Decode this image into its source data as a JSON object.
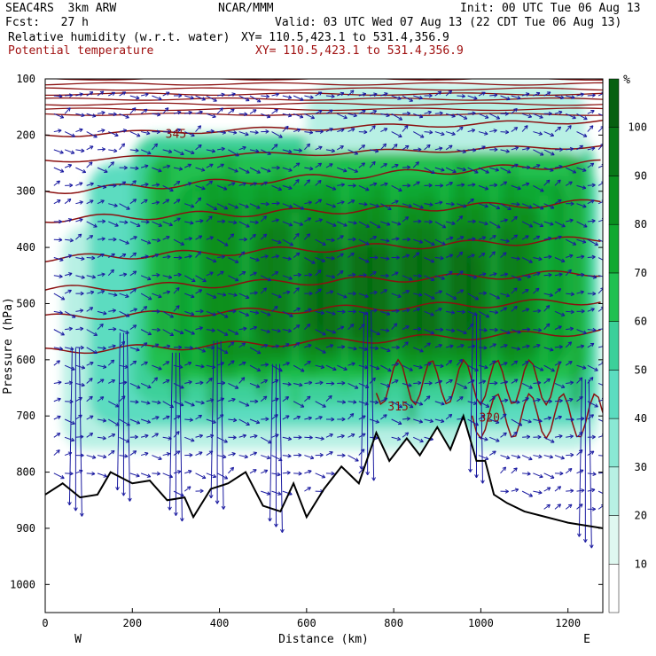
{
  "header": {
    "model": "SEAC4RS  3km ARW",
    "org": "NCAR/MMM",
    "init": "Init: 00 UTC Tue 06 Aug 13",
    "fcst": "Fcst:   27 h",
    "valid": "Valid: 03 UTC Wed 07 Aug 13 (22 CDT Tue 06 Aug 13)",
    "field1": "Relative humidity (w.r.t. water)",
    "xy1": "XY= 110.5,423.1 to 531.4,356.9",
    "field2": "Potential temperature",
    "xy2": "XY= 110.5,423.1 to 531.4,356.9"
  },
  "colors": {
    "rh_shades": [
      "#ffffff",
      "#dff8f0",
      "#b8f0e4",
      "#8ae8d4",
      "#5cdcc0",
      "#3cd09a",
      "#20c050",
      "#10a830",
      "#0a9020",
      "#087818",
      "#066010"
    ],
    "theta": "#8b1010",
    "terrain": "#000000",
    "wind": "#1a1aa0"
  },
  "chart_data": {
    "type": "heatmap",
    "description_fields": [
      "Relative humidity (w.r.t. water)",
      "Potential temperature"
    ],
    "x": {
      "label": "Distance (km)",
      "ticks": [
        0,
        200,
        400,
        600,
        800,
        1000,
        1200
      ],
      "range": [
        0,
        1280
      ],
      "end_labels": [
        "W",
        "E"
      ]
    },
    "y": {
      "label": "Pressure (hPa)",
      "ticks": [
        100,
        200,
        300,
        400,
        500,
        600,
        700,
        800,
        900,
        1000
      ],
      "range": [
        100,
        1050
      ],
      "inverted": true
    },
    "colorbar": {
      "unit": "%",
      "levels": [
        10,
        20,
        30,
        40,
        50,
        60,
        70,
        80,
        90,
        100
      ]
    },
    "contour_labels": [
      {
        "text": "345",
        "x": 300,
        "p": 205
      },
      {
        "text": "315",
        "x": 810,
        "p": 690
      },
      {
        "text": "320",
        "x": 1020,
        "p": 710
      }
    ],
    "theta_levels": [
      {
        "p_left": 300,
        "p_right": 250
      },
      {
        "p_left": 350,
        "p_right": 320
      },
      {
        "p_left": 420,
        "p_right": 385
      },
      {
        "p_left": 475,
        "p_right": 445
      },
      {
        "p_left": 525,
        "p_right": 495
      },
      {
        "p_left": 585,
        "p_right": 550
      }
    ],
    "terrain_pressure": [
      {
        "x": 0,
        "p": 840
      },
      {
        "x": 40,
        "p": 820
      },
      {
        "x": 80,
        "p": 845
      },
      {
        "x": 120,
        "p": 840
      },
      {
        "x": 150,
        "p": 800
      },
      {
        "x": 200,
        "p": 820
      },
      {
        "x": 240,
        "p": 815
      },
      {
        "x": 280,
        "p": 850
      },
      {
        "x": 320,
        "p": 845
      },
      {
        "x": 340,
        "p": 880
      },
      {
        "x": 380,
        "p": 830
      },
      {
        "x": 420,
        "p": 820
      },
      {
        "x": 460,
        "p": 800
      },
      {
        "x": 500,
        "p": 860
      },
      {
        "x": 540,
        "p": 870
      },
      {
        "x": 570,
        "p": 820
      },
      {
        "x": 600,
        "p": 880
      },
      {
        "x": 640,
        "p": 830
      },
      {
        "x": 680,
        "p": 790
      },
      {
        "x": 720,
        "p": 820
      },
      {
        "x": 760,
        "p": 730
      },
      {
        "x": 790,
        "p": 780
      },
      {
        "x": 830,
        "p": 740
      },
      {
        "x": 860,
        "p": 770
      },
      {
        "x": 900,
        "p": 720
      },
      {
        "x": 930,
        "p": 760
      },
      {
        "x": 960,
        "p": 700
      },
      {
        "x": 990,
        "p": 780
      },
      {
        "x": 1010,
        "p": 780
      },
      {
        "x": 1030,
        "p": 840
      },
      {
        "x": 1060,
        "p": 855
      },
      {
        "x": 1100,
        "p": 870
      },
      {
        "x": 1150,
        "p": 880
      },
      {
        "x": 1200,
        "p": 890
      },
      {
        "x": 1280,
        "p": 900
      }
    ]
  }
}
